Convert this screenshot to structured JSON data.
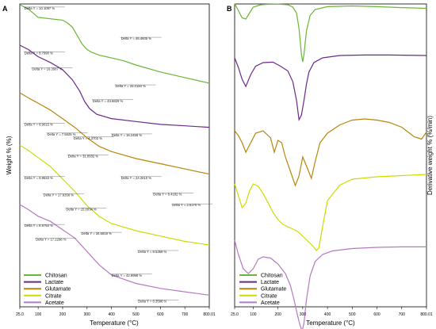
{
  "figure": {
    "panel_a_label": "A",
    "panel_b_label": "B",
    "panel_a_ylabel": "Weight % (%)",
    "panel_a_xlabel": "Temperature (°C)",
    "panel_b_ylabel": "Derivative weight % (%/min)",
    "panel_b_xlabel": "Temperature (°C)",
    "panel_a_ticks": [
      "25.0",
      "100",
      "200",
      "300",
      "400",
      "500",
      "600",
      "700",
      "800.01"
    ],
    "panel_b_ticks": [
      "25.0",
      "100",
      "200",
      "300",
      "400",
      "500",
      "600",
      "700",
      "800.01"
    ],
    "legend": [
      {
        "name": "Chitosan",
        "color": "#6ab536"
      },
      {
        "name": "Lactate",
        "color": "#6a2a8c"
      },
      {
        "name": "Glutamate",
        "color": "#b8860b"
      },
      {
        "name": "Citrate",
        "color": "#cddc00"
      },
      {
        "name": "Acetate",
        "color": "#b57ac2"
      }
    ]
  },
  "chart_data": [
    {
      "type": "line",
      "panel": "A",
      "xlabel": "Temperature (°C)",
      "ylabel": "Weight % (%)",
      "xlim": [
        25,
        800.01
      ],
      "series": [
        {
          "name": "Chitosan",
          "color": "#6ab536",
          "x": [
            25,
            60,
            100,
            150,
            200,
            220,
            240,
            260,
            280,
            300,
            320,
            350,
            400,
            450,
            500,
            600,
            700,
            800
          ],
          "y": [
            100,
            97,
            91,
            90,
            89,
            87,
            84,
            78,
            72,
            68,
            66,
            64,
            62,
            60,
            57,
            52,
            48,
            44
          ]
        },
        {
          "name": "Lactate",
          "color": "#6a2a8c",
          "x": [
            25,
            60,
            100,
            150,
            200,
            240,
            270,
            290,
            310,
            340,
            400,
            500,
            600,
            700,
            800
          ],
          "y": [
            100,
            97,
            92,
            88,
            83,
            76,
            68,
            61,
            56,
            52,
            49,
            47,
            45,
            44,
            43
          ]
        },
        {
          "name": "Glutamate",
          "color": "#b8860b",
          "x": [
            25,
            60,
            100,
            150,
            200,
            250,
            300,
            350,
            400,
            500,
            600,
            700,
            800
          ],
          "y": [
            100,
            97,
            94,
            90,
            85,
            80,
            74,
            69,
            66,
            62,
            59,
            56,
            53
          ]
        },
        {
          "name": "Citrate",
          "color": "#cddc00",
          "x": [
            25,
            60,
            100,
            150,
            200,
            250,
            300,
            350,
            400,
            500,
            600,
            700,
            800
          ],
          "y": [
            100,
            97,
            93,
            88,
            81,
            74,
            66,
            60,
            56,
            52,
            49,
            46,
            44
          ]
        },
        {
          "name": "Acetate",
          "color": "#b57ac2",
          "x": [
            25,
            60,
            100,
            150,
            200,
            250,
            300,
            350,
            400,
            500,
            600,
            700,
            800
          ],
          "y": [
            100,
            97,
            93,
            90,
            85,
            80,
            72,
            64,
            58,
            53,
            50,
            48,
            46
          ]
        }
      ],
      "annotations": [
        "Delta Y = 10.1097 %",
        "Delta Y = 46.4605 %",
        "Delta Y = 33.0184 %",
        "Delta Y = 8.7990 %",
        "Delta Y = 16.3587 %",
        "Delta Y = 43.6829 %",
        "Delta Y = 16.2458 %",
        "Delta Y = 8.9015 %",
        "Delta Y = 7.5625 %",
        "Delta Y = 4.3702 %",
        "Delta Y = 31.0932 %",
        "Delta Y = 24.2610 %",
        "Delta Y = 8.4182 %",
        "Delta Y = 2.6370 %",
        "Delta Y = 9.9633 %",
        "Delta Y = 17.6358 %",
        "Delta Y = 15.0034 %",
        "Delta Y = 34.5818 %",
        "Delta Y = 8.5359 %",
        "Delta Y = 8.9793 %",
        "Delta Y = 17.2298 %",
        "Delta Y = 42.9998 %",
        "Delta Y = 8.3598 %"
      ]
    },
    {
      "type": "line",
      "panel": "B",
      "xlabel": "Temperature (°C)",
      "ylabel": "Derivative weight % (%/min)",
      "xlim": [
        25,
        800.01
      ],
      "series": [
        {
          "name": "Chitosan",
          "color": "#6ab536",
          "x": [
            25,
            40,
            55,
            70,
            85,
            100,
            130,
            160,
            200,
            240,
            260,
            275,
            285,
            295,
            300,
            305,
            315,
            330,
            350,
            400,
            500,
            600,
            700,
            800
          ],
          "y": [
            0.85,
            0.55,
            0.25,
            0.2,
            0.45,
            0.7,
            0.8,
            0.82,
            0.83,
            0.8,
            0.7,
            0.45,
            -0.2,
            -1.3,
            -1.6,
            -1.3,
            -0.3,
            0.35,
            0.6,
            0.72,
            0.75,
            0.72,
            0.68,
            0.65
          ]
        },
        {
          "name": "Lactate",
          "color": "#6a2a8c",
          "x": [
            25,
            40,
            55,
            70,
            90,
            110,
            140,
            180,
            210,
            240,
            260,
            275,
            285,
            295,
            305,
            315,
            325,
            345,
            380,
            450,
            550,
            650,
            800
          ],
          "y": [
            0.9,
            0.5,
            0.0,
            -0.3,
            0.2,
            0.55,
            0.7,
            0.72,
            0.55,
            0.35,
            -0.1,
            -0.9,
            -1.7,
            -1.5,
            -0.9,
            -0.2,
            0.3,
            0.7,
            0.9,
            1.0,
            1.02,
            1.02,
            1.0
          ]
        },
        {
          "name": "Glutamate",
          "color": "#b8860b",
          "x": [
            25,
            40,
            55,
            70,
            90,
            110,
            140,
            170,
            185,
            200,
            215,
            230,
            250,
            270,
            285,
            300,
            320,
            335,
            350,
            370,
            400,
            450,
            500,
            550,
            600,
            650,
            700,
            750,
            780,
            800
          ],
          "y": [
            0.5,
            0.3,
            0.0,
            -0.4,
            0.0,
            0.4,
            0.5,
            0.2,
            -0.4,
            0.1,
            0.0,
            -0.6,
            -1.2,
            -1.8,
            -1.4,
            -0.6,
            -1.1,
            -1.5,
            -0.8,
            0.0,
            0.4,
            0.75,
            0.95,
            1.0,
            0.95,
            0.85,
            0.65,
            0.25,
            0.15,
            0.45
          ]
        },
        {
          "name": "Citrate",
          "color": "#cddc00",
          "x": [
            25,
            40,
            55,
            70,
            85,
            100,
            120,
            140,
            160,
            180,
            200,
            220,
            240,
            260,
            280,
            300,
            320,
            340,
            355,
            365,
            380,
            400,
            450,
            500,
            600,
            700,
            800
          ],
          "y": [
            0.6,
            0.1,
            -0.4,
            -0.2,
            0.3,
            0.6,
            0.5,
            0.2,
            -0.2,
            -0.6,
            -0.9,
            -1.1,
            -1.2,
            -1.3,
            -1.4,
            -1.6,
            -1.8,
            -2.0,
            -2.2,
            -2.1,
            -1.2,
            -0.1,
            0.55,
            0.8,
            0.9,
            0.95,
            1.0
          ]
        },
        {
          "name": "Acetate",
          "color": "#b57ac2",
          "x": [
            25,
            40,
            60,
            80,
            100,
            120,
            140,
            170,
            200,
            230,
            250,
            265,
            280,
            290,
            298,
            305,
            315,
            330,
            350,
            380,
            420,
            500,
            600,
            700,
            800
          ],
          "y": [
            0.9,
            0.3,
            -0.3,
            -0.5,
            -0.3,
            0.1,
            0.2,
            0.15,
            -0.1,
            -0.5,
            -1.0,
            -1.6,
            -2.3,
            -2.7,
            -2.9,
            -2.6,
            -1.6,
            -0.6,
            0.0,
            0.3,
            0.45,
            0.55,
            0.6,
            0.62,
            0.62
          ]
        }
      ]
    }
  ]
}
